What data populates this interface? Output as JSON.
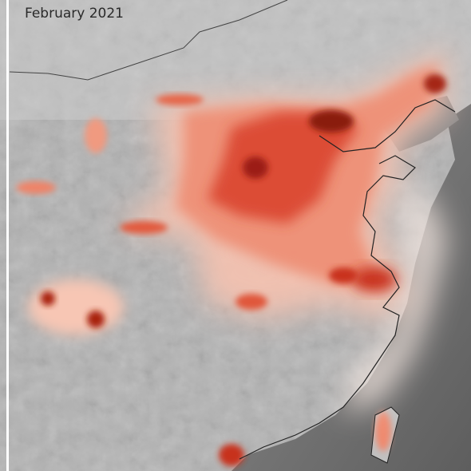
{
  "map": {
    "title": "February 2021"
  }
}
